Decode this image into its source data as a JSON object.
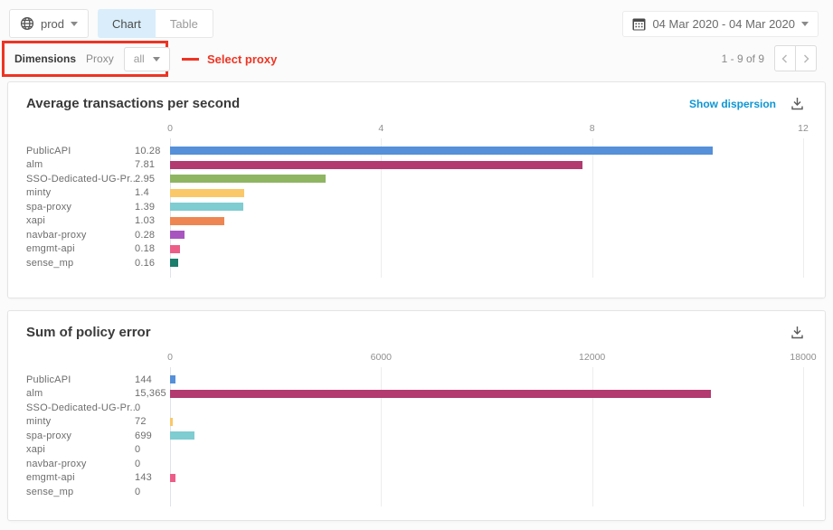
{
  "toolbar": {
    "environment": {
      "label": "prod"
    },
    "tabs": [
      {
        "label": "Chart",
        "active": true
      },
      {
        "label": "Table",
        "active": false
      }
    ],
    "date_range": "04 Mar 2020 - 04 Mar 2020"
  },
  "filter_bar": {
    "dimensions_label": "Dimensions",
    "proxy_label": "Proxy",
    "proxy_selected": "all",
    "annotation_text": "Select proxy"
  },
  "pagination": {
    "range_text": "1 - 9 of 9"
  },
  "colors": {
    "annotation_red": "#ee3423",
    "link_blue": "#0d96d4",
    "active_tab_bg": "#d9eefa",
    "palette": [
      "#5590d9",
      "#b23a70",
      "#8fb563",
      "#fac869",
      "#7fccd1",
      "#ed8652",
      "#a855c0",
      "#ec5d88",
      "#1b7d6c"
    ]
  },
  "chart_data": [
    {
      "type": "bar",
      "orientation": "horizontal",
      "title": "Average transactions per second",
      "dispersion_link": "Show dispersion",
      "categories": [
        "PublicAPI",
        "alm",
        "SSO-Dedicated-UG-Pr...",
        "minty",
        "spa-proxy",
        "xapi",
        "navbar-proxy",
        "emgmt-api",
        "sense_mp"
      ],
      "values": [
        10.28,
        7.81,
        2.95,
        1.4,
        1.39,
        1.03,
        0.28,
        0.18,
        0.16
      ],
      "value_labels": [
        "10.28",
        "7.81",
        "2.95",
        "1.4",
        "1.39",
        "1.03",
        "0.28",
        "0.18",
        "0.16"
      ],
      "xlim": [
        0,
        12
      ],
      "tick_labels": [
        "0",
        "4",
        "8",
        "12"
      ],
      "grid": true,
      "legend": false
    },
    {
      "type": "bar",
      "orientation": "horizontal",
      "title": "Sum of policy error",
      "categories": [
        "PublicAPI",
        "alm",
        "SSO-Dedicated-UG-Pr...",
        "minty",
        "spa-proxy",
        "xapi",
        "navbar-proxy",
        "emgmt-api",
        "sense_mp"
      ],
      "values": [
        144,
        15365,
        0,
        72,
        699,
        0,
        0,
        143,
        0
      ],
      "value_labels": [
        "144",
        "15,365",
        "0",
        "72",
        "699",
        "0",
        "0",
        "143",
        "0"
      ],
      "xlim": [
        0,
        18000
      ],
      "tick_labels": [
        "0",
        "6000",
        "12000",
        "18000"
      ],
      "grid": true,
      "legend": false
    }
  ]
}
